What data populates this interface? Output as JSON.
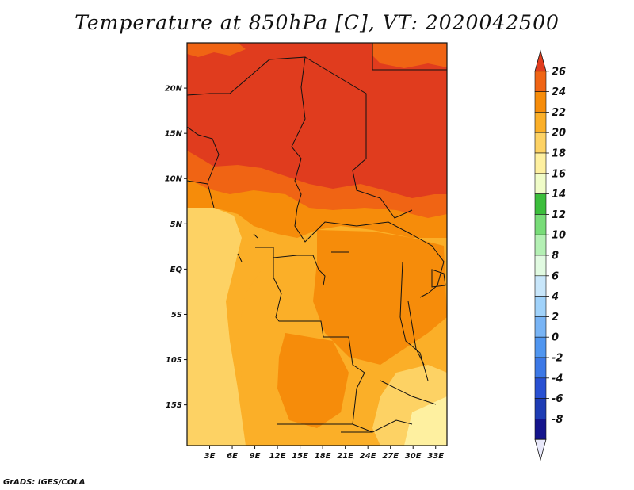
{
  "title": "Temperature at 850hPa [C], VT: 2020042500",
  "footer": "GrADS: IGES/COLA",
  "map": {
    "region": "Central Africa",
    "variable": "Temperature at 850hPa",
    "units": "C",
    "valid_time": "2020042500",
    "lon_range": [
      0,
      34.5
    ],
    "lat_range": [
      -19.5,
      25
    ],
    "lon_ticks": [
      "3E",
      "6E",
      "9E",
      "12E",
      "15E",
      "18E",
      "21E",
      "24E",
      "27E",
      "30E",
      "33E"
    ],
    "lon_tick_values": [
      3,
      6,
      9,
      12,
      15,
      18,
      21,
      24,
      27,
      30,
      33
    ],
    "lat_ticks": [
      "20N",
      "15N",
      "10N",
      "5N",
      "EQ",
      "5S",
      "10S",
      "15S"
    ],
    "lat_tick_values": [
      20,
      15,
      10,
      5,
      0,
      -5,
      -10,
      -15
    ]
  },
  "colorbar": {
    "labels": [
      "26",
      "24",
      "22",
      "20",
      "18",
      "16",
      "14",
      "12",
      "10",
      "8",
      "6",
      "4",
      "2",
      "0",
      "-2",
      "-4",
      "-6",
      "-8"
    ],
    "colors": [
      "#e03c1e",
      "#f06414",
      "#f68c0a",
      "#fbaf28",
      "#fdd264",
      "#fef0a0",
      "#f0fcc8",
      "#3cbe3c",
      "#78dc78",
      "#b4f0b4",
      "#e1fae1",
      "#c8e6fa",
      "#a0d2fa",
      "#78b4f5",
      "#5096f0",
      "#3c78e6",
      "#2850d2",
      "#1e3cb4",
      "#14148c",
      "#e8e8fa"
    ]
  }
}
